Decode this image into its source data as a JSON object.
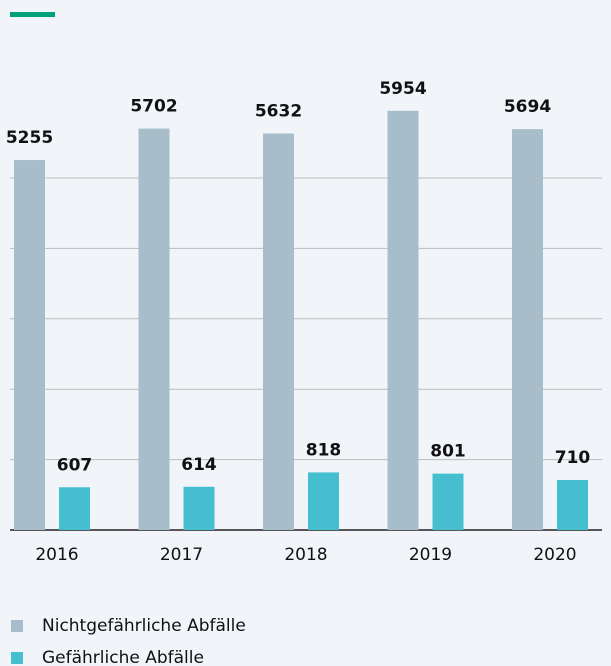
{
  "chart_data": {
    "type": "bar",
    "categories": [
      "2016",
      "2017",
      "2018",
      "2019",
      "2020"
    ],
    "series": [
      {
        "name": "Nichtgefährliche Abfälle",
        "color": "#a7bdca",
        "values": [
          5255,
          5702,
          5632,
          5954,
          5694
        ]
      },
      {
        "name": "Gefährliche Abfälle",
        "color": "#45bfcf",
        "values": [
          607,
          614,
          818,
          801,
          710
        ]
      }
    ],
    "ylim": [
      0,
      6000
    ],
    "yticks": [
      0,
      1000,
      2000,
      3000,
      4000,
      5000
    ],
    "grid": true,
    "legend": "bottom"
  }
}
